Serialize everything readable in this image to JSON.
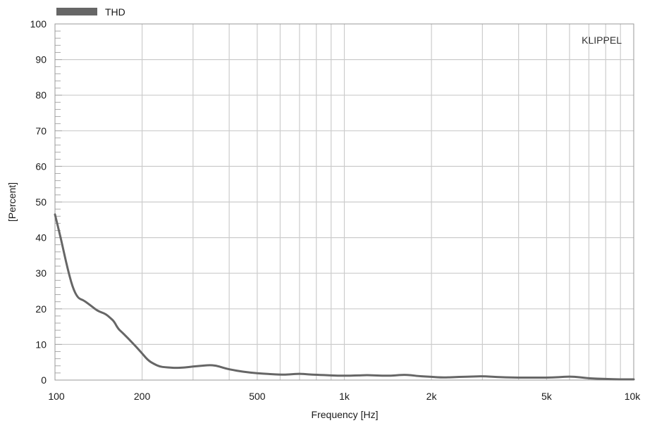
{
  "chart_data": {
    "type": "line",
    "x_scale": "log",
    "xlabel": "Frequency [Hz]",
    "ylabel": "[Percent]",
    "xlim": [
      100,
      10000
    ],
    "ylim": [
      0,
      100
    ],
    "x_ticks": [
      100,
      200,
      500,
      1000,
      2000,
      5000,
      10000
    ],
    "x_tick_labels": [
      "100",
      "200",
      "500",
      "1k",
      "2k",
      "5k",
      "10k"
    ],
    "y_ticks": [
      0,
      10,
      20,
      30,
      40,
      50,
      60,
      70,
      80,
      90,
      100
    ],
    "y_tick_labels": [
      "0",
      "10",
      "20",
      "30",
      "40",
      "50",
      "60",
      "70",
      "80",
      "90",
      "100"
    ],
    "grid": true,
    "legend_position": "top-left",
    "watermark": "KLIPPEL",
    "series": [
      {
        "name": "THD",
        "color": "#666666",
        "x": [
          100,
          105,
          110,
          115,
          120,
          125,
          130,
          135,
          140,
          145,
          150,
          155,
          160,
          165,
          170,
          175,
          180,
          190,
          200,
          210,
          220,
          230,
          240,
          250,
          260,
          280,
          300,
          320,
          340,
          360,
          380,
          400,
          450,
          500,
          550,
          600,
          650,
          700,
          750,
          800,
          900,
          1000,
          1100,
          1200,
          1300,
          1400,
          1500,
          1600,
          1700,
          1800,
          2000,
          2200,
          2500,
          2800,
          3000,
          3500,
          4000,
          4500,
          5000,
          5500,
          6000,
          6500,
          7000,
          8000,
          9000,
          10000
        ],
        "y": [
          46.5,
          39.5,
          32,
          26,
          23,
          22.5,
          21.5,
          20.5,
          19.5,
          19,
          18.5,
          17.5,
          16.5,
          14.5,
          13.5,
          12.5,
          11.5,
          9.5,
          7.5,
          5.5,
          4.5,
          3.8,
          3.6,
          3.5,
          3.4,
          3.5,
          3.8,
          4.0,
          4.2,
          4.1,
          3.5,
          3.0,
          2.3,
          1.9,
          1.7,
          1.5,
          1.6,
          1.8,
          1.6,
          1.5,
          1.3,
          1.2,
          1.3,
          1.4,
          1.3,
          1.2,
          1.3,
          1.5,
          1.4,
          1.1,
          0.9,
          0.7,
          0.9,
          1.0,
          1.1,
          0.8,
          0.7,
          0.7,
          0.7,
          0.8,
          1.0,
          0.8,
          0.5,
          0.3,
          0.2,
          0.2
        ]
      }
    ]
  }
}
